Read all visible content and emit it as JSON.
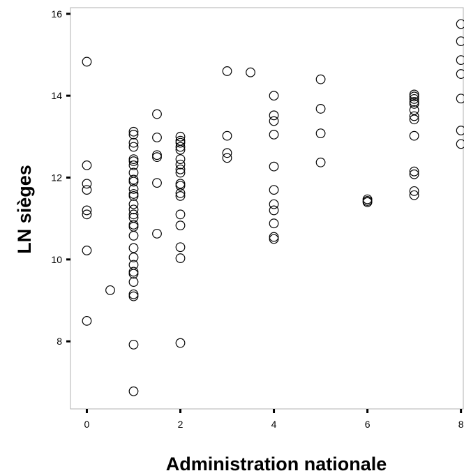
{
  "chart_data": {
    "type": "scatter",
    "title": "",
    "xlabel": "Administration nationale",
    "ylabel": "LN sièges",
    "xlim": [
      -0.35,
      8.05
    ],
    "ylim": [
      6.35,
      16.15
    ],
    "xticks": [
      0,
      2,
      4,
      6,
      8
    ],
    "yticks": [
      8,
      10,
      12,
      14,
      16
    ],
    "grid": false,
    "marker": "open-circle",
    "series": [
      {
        "points": [
          {
            "x": 0,
            "y": 14.83
          },
          {
            "x": 0,
            "y": 12.3
          },
          {
            "x": 0,
            "y": 11.85
          },
          {
            "x": 0,
            "y": 11.7
          },
          {
            "x": 0,
            "y": 11.2
          },
          {
            "x": 0,
            "y": 11.1
          },
          {
            "x": 0,
            "y": 10.22
          },
          {
            "x": 0,
            "y": 8.5
          },
          {
            "x": 0.5,
            "y": 9.25
          },
          {
            "x": 1,
            "y": 13.12
          },
          {
            "x": 1,
            "y": 13.05
          },
          {
            "x": 1,
            "y": 12.85
          },
          {
            "x": 1,
            "y": 12.75
          },
          {
            "x": 1,
            "y": 12.45
          },
          {
            "x": 1,
            "y": 12.4
          },
          {
            "x": 1,
            "y": 12.3
          },
          {
            "x": 1,
            "y": 12.12
          },
          {
            "x": 1,
            "y": 11.95
          },
          {
            "x": 1,
            "y": 11.9
          },
          {
            "x": 1,
            "y": 11.72
          },
          {
            "x": 1,
            "y": 11.6
          },
          {
            "x": 1,
            "y": 11.55
          },
          {
            "x": 1,
            "y": 11.35
          },
          {
            "x": 1,
            "y": 11.22
          },
          {
            "x": 1,
            "y": 11.1
          },
          {
            "x": 1,
            "y": 11.02
          },
          {
            "x": 1,
            "y": 10.85
          },
          {
            "x": 1,
            "y": 10.8
          },
          {
            "x": 1,
            "y": 10.58
          },
          {
            "x": 1,
            "y": 10.28
          },
          {
            "x": 1,
            "y": 10.05
          },
          {
            "x": 1,
            "y": 9.87
          },
          {
            "x": 1,
            "y": 9.7
          },
          {
            "x": 1,
            "y": 9.65
          },
          {
            "x": 1,
            "y": 9.45
          },
          {
            "x": 1,
            "y": 9.15
          },
          {
            "x": 1,
            "y": 9.1
          },
          {
            "x": 1,
            "y": 7.92
          },
          {
            "x": 1,
            "y": 6.78
          },
          {
            "x": 1.5,
            "y": 13.55
          },
          {
            "x": 1.5,
            "y": 12.98
          },
          {
            "x": 1.5,
            "y": 12.55
          },
          {
            "x": 1.5,
            "y": 12.5
          },
          {
            "x": 1.5,
            "y": 11.87
          },
          {
            "x": 1.5,
            "y": 10.63
          },
          {
            "x": 2,
            "y": 13.0
          },
          {
            "x": 2,
            "y": 12.9
          },
          {
            "x": 2,
            "y": 12.85
          },
          {
            "x": 2,
            "y": 12.75
          },
          {
            "x": 2,
            "y": 12.68
          },
          {
            "x": 2,
            "y": 12.45
          },
          {
            "x": 2,
            "y": 12.32
          },
          {
            "x": 2,
            "y": 12.2
          },
          {
            "x": 2,
            "y": 12.12
          },
          {
            "x": 2,
            "y": 11.85
          },
          {
            "x": 2,
            "y": 11.8
          },
          {
            "x": 2,
            "y": 11.62
          },
          {
            "x": 2,
            "y": 11.55
          },
          {
            "x": 2,
            "y": 11.1
          },
          {
            "x": 2,
            "y": 10.83
          },
          {
            "x": 2,
            "y": 10.3
          },
          {
            "x": 2,
            "y": 10.03
          },
          {
            "x": 2,
            "y": 7.96
          },
          {
            "x": 3,
            "y": 14.6
          },
          {
            "x": 3,
            "y": 13.02
          },
          {
            "x": 3,
            "y": 12.6
          },
          {
            "x": 3,
            "y": 12.48
          },
          {
            "x": 3.5,
            "y": 14.57
          },
          {
            "x": 4,
            "y": 14.0
          },
          {
            "x": 4,
            "y": 13.52
          },
          {
            "x": 4,
            "y": 13.38
          },
          {
            "x": 4,
            "y": 13.05
          },
          {
            "x": 4,
            "y": 12.27
          },
          {
            "x": 4,
            "y": 11.7
          },
          {
            "x": 4,
            "y": 11.35
          },
          {
            "x": 4,
            "y": 11.2
          },
          {
            "x": 4,
            "y": 10.88
          },
          {
            "x": 4,
            "y": 10.55
          },
          {
            "x": 4,
            "y": 10.5
          },
          {
            "x": 5,
            "y": 14.4
          },
          {
            "x": 5,
            "y": 13.68
          },
          {
            "x": 5,
            "y": 13.08
          },
          {
            "x": 5,
            "y": 12.37
          },
          {
            "x": 6,
            "y": 11.47
          },
          {
            "x": 6,
            "y": 11.43
          },
          {
            "x": 6,
            "y": 11.4
          },
          {
            "x": 7,
            "y": 14.03
          },
          {
            "x": 7,
            "y": 13.98
          },
          {
            "x": 7,
            "y": 13.92
          },
          {
            "x": 7,
            "y": 13.85
          },
          {
            "x": 7,
            "y": 13.8
          },
          {
            "x": 7,
            "y": 13.65
          },
          {
            "x": 7,
            "y": 13.5
          },
          {
            "x": 7,
            "y": 13.42
          },
          {
            "x": 7,
            "y": 13.02
          },
          {
            "x": 7,
            "y": 12.15
          },
          {
            "x": 7,
            "y": 12.08
          },
          {
            "x": 7,
            "y": 11.67
          },
          {
            "x": 7,
            "y": 11.57
          },
          {
            "x": 8,
            "y": 15.75
          },
          {
            "x": 8,
            "y": 15.33
          },
          {
            "x": 8,
            "y": 14.87
          },
          {
            "x": 8,
            "y": 14.53
          },
          {
            "x": 8,
            "y": 13.93
          },
          {
            "x": 8,
            "y": 13.15
          },
          {
            "x": 8,
            "y": 12.82
          }
        ]
      }
    ]
  }
}
